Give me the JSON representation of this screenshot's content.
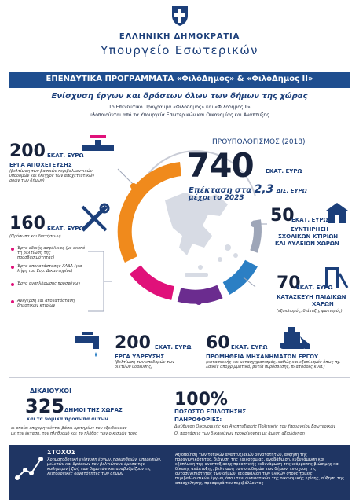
{
  "header": {
    "gov_name": "ΕΛΛΗΝΙΚΗ ΔΗΜΟΚΡΑΤΙΑ",
    "ministry": "Υπουργείο Εσωτερικών",
    "banner": "ΕΠΕΝΔΥΤΙΚΑ ΠΡΟΓΡΑΜΜΑΤΑ «ΦιλόΔημος» & «ΦιλόΔημος ΙΙ»",
    "subtitle": "Ενίσχυση έργων και δράσεων όλων των δήμων της χώρας",
    "intro_line1": "Το Επενδυτικό Πρόγραμμα «Φιλόδημος» και «Φιλόδημος ΙΙ»",
    "intro_line2": "υλοποιούνται από τα Υπουργεία Εσωτερικών και Οικονομίας και Ανάπτυξης"
  },
  "budget": {
    "label": "ΠΡΟΫΠΟΛΟΓΙΣΜΟΣ (2018)",
    "value": "740",
    "unit": "ΕΚΑΤ. ΕΥΡΩ",
    "ext_prefix": "Επέκταση στα",
    "ext_value": "2,3",
    "ext_unit": "ΔΙΣ. ΕΥΡΩ",
    "ext_line2": "μέχρι το 2023"
  },
  "blocks": {
    "water_supply_top": {
      "value": "200",
      "unit": "ΕΚΑΤ. ΕΥΡΩ",
      "caption": "ΕΡΓΑ ΑΠΟΧΕΤΕΥΣΗΣ",
      "note": "(βελτίωση των βασικών περιβαλλοντικών υποδομών και έλεγχος των αποχετευτικών ροών των δήμων)"
    },
    "various": {
      "value": "160",
      "unit": "ΕΚΑΤ. ΕΥΡΩ",
      "note": "(Πρόσωπα και διατήσεων)",
      "items": [
        "Έργα οδικής ασφάλειας (με σκοπό τη βελτίωση της προσβασιμότητας)",
        "Έργα αποκατάστασης ΧΑΔΑ (για λήψη του Ευρ. Δικαστηρίου)",
        "Έργα αναπλήρωσης προσφύγων",
        "Ανέγερση και αποκατάσταση δημοτικών κτιρίων"
      ]
    },
    "schools": {
      "value": "50",
      "unit": "ΕΚΑΤ. ΕΥΡΩ",
      "caption1": "ΣΥΝΤΗΡΗΣΗ",
      "caption2": "ΣΧΟΛΙΚΩΝ ΚΤΙΡΙΩΝ",
      "caption3": "ΚΑΙ ΑΥΛΕΙΩΝ ΧΩΡΩΝ"
    },
    "playgrounds": {
      "value": "70",
      "unit": "ΕΚΑΤ. ΕΥΡΩ",
      "caption1": "ΚΑΤΑΣΚΕΥΗ ΠΑΙΔΙΚΩΝ",
      "caption2": "ΧΑΡΩΝ",
      "note": "(εξοπλισμός, διάταξη, φωτισμός)"
    },
    "water": {
      "value": "200",
      "unit": "ΕΚΑΤ. ΕΥΡΩ",
      "caption": "ΕΡΓΑ ΥΔΡΕΥΣΗΣ",
      "note": "(βελτίωση των υποδομών των δικτύων ύδρευσης)"
    },
    "machinery": {
      "value": "60",
      "unit": "ΕΚΑΤ. ΕΥΡΩ",
      "caption": "ΠΡΟΜΗΘΕΙΑ ΜΗΧΑΝΗΜΑΤΩΝ ΕΡΓΟΥ",
      "note": "(κατασκευής και μετασχηματισμός, καθώς και εξοπλισμός όπως πχ. λαϊκές απορριμματικά, βυτία πυρόσβεσης, πλατφόρες κ.λπ.)"
    }
  },
  "beneficiaries": {
    "label": "ΔΙΚΑΙΟΥΧΟΙ",
    "value": "325",
    "suffix": "ΔΗΜΟΙ ΤΗΣ ΧΩΡΑΣ",
    "line2": "και τα νομικά πρόσωπα αυτών",
    "line3": "οι οποίοι επιχορηγούνται βάσει κριτηρίων που εξειδίκευαν",
    "line4": "με την έκταση, τον πληθυσμό και το πλήθος των οικισμών τους"
  },
  "funding": {
    "value": "100%",
    "caption": "ΠΟΣΟΣΤΟ ΕΠΙΔΟΤΗΣΗΣ",
    "info_label": "ΠΛΗΡΟΦΟΡΙΕΣ:",
    "info_line": "Διεύθυνση Οικονομικής και Αναπτυξιακής Πολιτικής του Υπουργείου Εσωτερικών",
    "info_line2": "Οι προτάσεις των δικαιούχων προκρίνονται με άμεση αξιολόγηση"
  },
  "goal": {
    "label": "ΣΤΟΧΟΣ",
    "text": "Χρηματοδοτική ενίσχυση έργων, προμηθειών, υπηρεσιών, μελετών και δράσεων που βελτιώνουν άμεσα την καθημερινή ζωή των δημοτών και αναβαθμίζουν τις λειτουργικές δυνατότητες των δήμων",
    "right": "Αξιοποίηση των τοπικών αναπτυξιακών δυνατοτήτων, αύξηση της παραγωγικότητας, διάχυση της καινοτομίας, αναβάθμιση, ενδυνάμωση και εξάπλωση της αναπτυξιακής προοπτικής ενδυνάμωση της ισόρροπης βιώσιμης και δίκαιης ανάπτυξης, βελτίωση των υποδομών των δήμων, ενίσχυση της αυτοσυνεπιότητας των δήμων, εξασφάλιση των υλικών στους τομείς περιβαλλοντικών έργων, όπου των ουσιαστικών της οικονομικής κρίσης, αύξηση της απασχόλησης, προσφορά του περιβάλλοντος"
  },
  "colors": {
    "navy": "#1c3f7a",
    "banner": "#1f4e8f",
    "orange": "#f08a1c",
    "magenta": "#e0117a",
    "purple": "#6b2c8f",
    "blue": "#2b7fc4",
    "bottom": "#1f3563"
  }
}
